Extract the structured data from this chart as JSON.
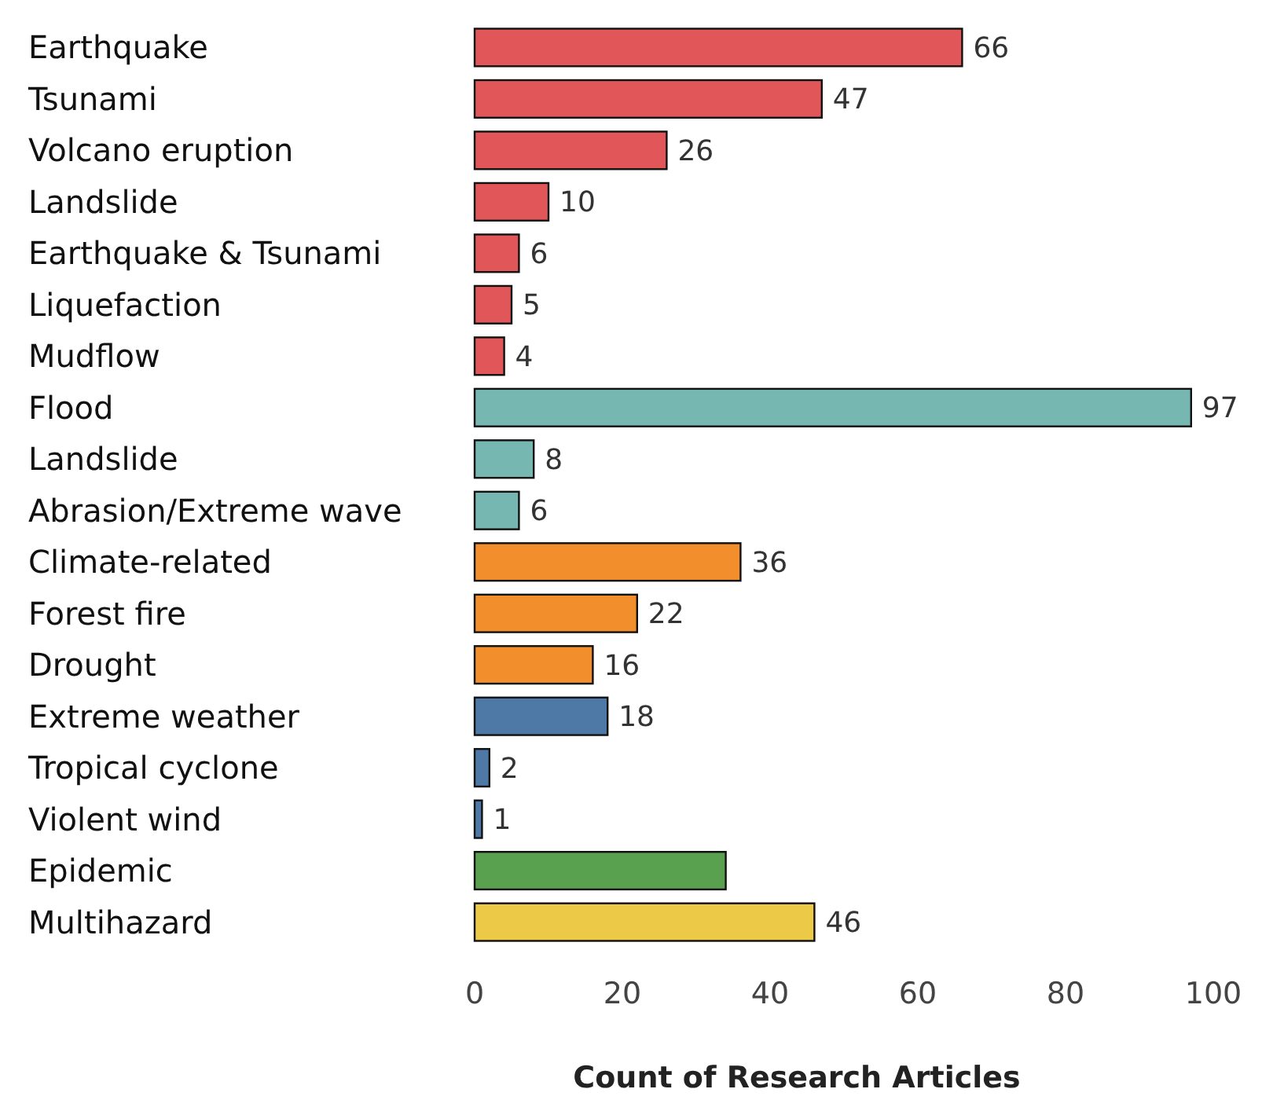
{
  "chart_data": {
    "type": "bar",
    "orientation": "horizontal",
    "xlabel": "Count of Research Articles",
    "categories": [
      "Earthquake",
      "Tsunami",
      "Volcano eruption",
      "Landslide",
      "Earthquake & Tsunami",
      "Liquefaction",
      "Mudflow",
      "Flood",
      "Landslide",
      "Abrasion/Extreme wave",
      "Climate-related",
      "Forest fire",
      "Drought",
      "Extreme weather",
      "Tropical cyclone",
      "Violent wind",
      "Epidemic",
      "Multihazard"
    ],
    "values": [
      66,
      47,
      26,
      10,
      6,
      5,
      4,
      97,
      8,
      6,
      36,
      22,
      16,
      18,
      2,
      1,
      34,
      46
    ],
    "value_labels": [
      "66",
      "47",
      "26",
      "10",
      "6",
      "5",
      "4",
      "97",
      "8",
      "6",
      "36",
      "22",
      "16",
      "18",
      "2",
      "1",
      null,
      "46"
    ],
    "colors": [
      "#e15759",
      "#e15759",
      "#e15759",
      "#e15759",
      "#e15759",
      "#e15759",
      "#e15759",
      "#76b7b2",
      "#76b7b2",
      "#76b7b2",
      "#f28e2b",
      "#f28e2b",
      "#f28e2b",
      "#4e79a7",
      "#4e79a7",
      "#4e79a7",
      "#59a14f",
      "#edc948"
    ],
    "xlim": [
      0,
      100
    ],
    "xticks": [
      0,
      20,
      40,
      60,
      80,
      100
    ]
  }
}
